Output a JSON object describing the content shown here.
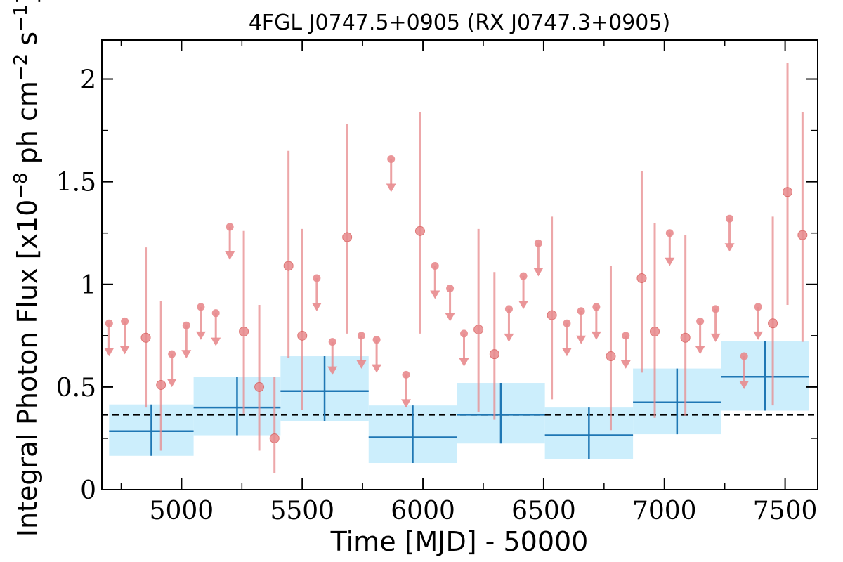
{
  "chart_data": {
    "type": "scatter",
    "title": "4FGL J0747.5+0905 (RX J0747.3+0905)",
    "xlabel": "Time [MJD] - 50000",
    "ylabel": "Integral Photon Flux [x10",
    "ylabel_exp": "−8",
    "ylabel_mid": " ph cm",
    "ylabel_exp2": "−2",
    "ylabel_end": " s",
    "ylabel_exp3": "−1",
    "ylabel_close": "]",
    "xlim": [
      4670,
      7635
    ],
    "ylim": [
      0,
      2.19
    ],
    "x_ticks": [
      5000,
      5500,
      6000,
      6500,
      7000,
      7500
    ],
    "x_tick_labels": [
      "5000",
      "5500",
      "6000",
      "6500",
      "7000",
      "7500"
    ],
    "y_ticks": [
      0,
      0.5,
      1,
      1.5,
      2
    ],
    "y_tick_labels": [
      "0",
      "0.5",
      "1",
      "1.5",
      "2"
    ],
    "average_flux": 0.365,
    "colors": {
      "points": "#e88a8d",
      "points_edge": "#d9605f",
      "bins": "#1f77b4",
      "bands": "#cceefc",
      "average": "#000000"
    },
    "series": [
      {
        "kind": "detections",
        "points": [
          {
            "x": 4852,
            "y": 0.74,
            "lo": 0.4,
            "hi": 1.18
          },
          {
            "x": 4915,
            "y": 0.51,
            "lo": 0.19,
            "hi": 0.92
          },
          {
            "x": 5258,
            "y": 0.77,
            "lo": 0.37,
            "hi": 1.26
          },
          {
            "x": 5322,
            "y": 0.5,
            "lo": 0.19,
            "hi": 0.9
          },
          {
            "x": 5385,
            "y": 0.25,
            "lo": 0.08,
            "hi": 0.55
          },
          {
            "x": 5443,
            "y": 1.09,
            "lo": 0.64,
            "hi": 1.65
          },
          {
            "x": 5500,
            "y": 0.75,
            "lo": 0.39,
            "hi": 1.27
          },
          {
            "x": 5686,
            "y": 1.23,
            "lo": 0.76,
            "hi": 1.78
          },
          {
            "x": 5988,
            "y": 1.26,
            "lo": 0.76,
            "hi": 1.84
          },
          {
            "x": 6230,
            "y": 0.78,
            "lo": 0.38,
            "hi": 1.27
          },
          {
            "x": 6296,
            "y": 0.66,
            "lo": 0.34,
            "hi": 1.06
          },
          {
            "x": 6534,
            "y": 0.85,
            "lo": 0.44,
            "hi": 1.33
          },
          {
            "x": 6778,
            "y": 0.65,
            "lo": 0.29,
            "hi": 1.09
          },
          {
            "x": 6906,
            "y": 1.03,
            "lo": 0.57,
            "hi": 1.55
          },
          {
            "x": 6960,
            "y": 0.77,
            "lo": 0.35,
            "hi": 1.3
          },
          {
            "x": 7087,
            "y": 0.74,
            "lo": 0.36,
            "hi": 1.24
          },
          {
            "x": 7449,
            "y": 0.81,
            "lo": 0.41,
            "hi": 1.33
          },
          {
            "x": 7510,
            "y": 1.45,
            "lo": 0.9,
            "hi": 2.08
          },
          {
            "x": 7572,
            "y": 1.24,
            "lo": 0.72,
            "hi": 1.84
          }
        ]
      },
      {
        "kind": "upper_limits",
        "points": [
          {
            "x": 4700,
            "y": 0.81
          },
          {
            "x": 4765,
            "y": 0.82
          },
          {
            "x": 4960,
            "y": 0.66
          },
          {
            "x": 5020,
            "y": 0.8
          },
          {
            "x": 5080,
            "y": 0.89
          },
          {
            "x": 5142,
            "y": 0.86
          },
          {
            "x": 5200,
            "y": 1.28
          },
          {
            "x": 5560,
            "y": 1.03
          },
          {
            "x": 5625,
            "y": 0.72
          },
          {
            "x": 5745,
            "y": 0.75
          },
          {
            "x": 5808,
            "y": 0.73
          },
          {
            "x": 5868,
            "y": 1.61
          },
          {
            "x": 5930,
            "y": 0.56
          },
          {
            "x": 6050,
            "y": 1.09
          },
          {
            "x": 6112,
            "y": 0.98
          },
          {
            "x": 6170,
            "y": 0.76
          },
          {
            "x": 6356,
            "y": 0.88
          },
          {
            "x": 6416,
            "y": 1.04
          },
          {
            "x": 6478,
            "y": 1.2
          },
          {
            "x": 6596,
            "y": 0.81
          },
          {
            "x": 6655,
            "y": 0.87
          },
          {
            "x": 6718,
            "y": 0.89
          },
          {
            "x": 6840,
            "y": 0.75
          },
          {
            "x": 7022,
            "y": 1.25
          },
          {
            "x": 7148,
            "y": 0.82
          },
          {
            "x": 7212,
            "y": 0.88
          },
          {
            "x": 7270,
            "y": 1.32
          },
          {
            "x": 7330,
            "y": 0.65
          },
          {
            "x": 7388,
            "y": 0.89
          }
        ]
      },
      {
        "kind": "binned",
        "bins": [
          {
            "x0": 4700,
            "x1": 5050,
            "y": 0.285,
            "lo": 0.165,
            "hi": 0.415
          },
          {
            "x0": 5050,
            "x1": 5410,
            "y": 0.4,
            "lo": 0.265,
            "hi": 0.55
          },
          {
            "x0": 5410,
            "x1": 5775,
            "y": 0.48,
            "lo": 0.335,
            "hi": 0.65
          },
          {
            "x0": 5775,
            "x1": 6140,
            "y": 0.255,
            "lo": 0.13,
            "hi": 0.41
          },
          {
            "x0": 6140,
            "x1": 6505,
            "y": 0.365,
            "lo": 0.225,
            "hi": 0.52
          },
          {
            "x0": 6505,
            "x1": 6870,
            "y": 0.265,
            "lo": 0.15,
            "hi": 0.4
          },
          {
            "x0": 6870,
            "x1": 7235,
            "y": 0.425,
            "lo": 0.27,
            "hi": 0.59
          },
          {
            "x0": 7235,
            "x1": 7600,
            "y": 0.55,
            "lo": 0.385,
            "hi": 0.725
          }
        ]
      }
    ]
  }
}
